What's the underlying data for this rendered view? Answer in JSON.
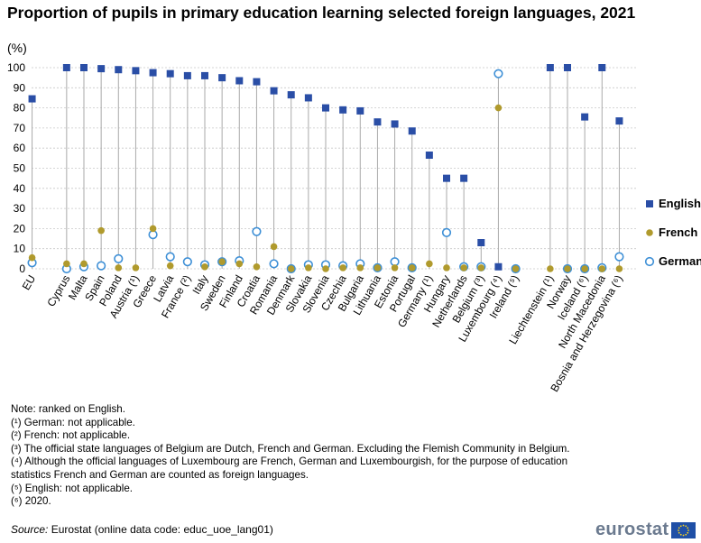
{
  "chart_data": {
    "type": "scatter",
    "title": "Proportion of pupils in primary education learning selected foreign languages, 2021",
    "unit": "(%)",
    "ylim": [
      0,
      100
    ],
    "yticks": [
      0,
      10,
      20,
      30,
      40,
      50,
      60,
      70,
      80,
      90,
      100
    ],
    "grid": true,
    "legend_position": "right",
    "categories": [
      "EU",
      "Cyprus",
      "Malta",
      "Spain",
      "Poland",
      "Austria (¹)",
      "Greece",
      "Latvia",
      "France (²)",
      "Italy",
      "Sweden",
      "Finland",
      "Croatia",
      "Romania",
      "Denmark",
      "Slovakia",
      "Slovenia",
      "Czechia",
      "Bulgaria",
      "Lithuania",
      "Estonia",
      "Portugal",
      "Germany (¹)",
      "Hungary",
      "Netherlands",
      "Belgium (³)",
      "Luxembourg (⁴)",
      "Ireland (⁵)",
      "Liechtenstein (¹)",
      "Norway",
      "Iceland (⁶)",
      "North Macedonia",
      "Bosnia and Herzegovina (⁶)"
    ],
    "series": [
      {
        "name": "English",
        "marker": "square",
        "color": "#2a4ea6",
        "values": [
          84.5,
          100,
          100,
          99.5,
          99,
          98.5,
          97.5,
          97,
          96,
          96,
          95,
          93.5,
          93,
          88.5,
          86.5,
          85,
          80,
          79,
          78.5,
          73,
          72,
          68.5,
          56.5,
          45,
          45,
          13,
          1,
          null,
          100,
          100,
          75.5,
          100,
          73.5
        ]
      },
      {
        "name": "French",
        "marker": "dot",
        "color": "#b09a2d",
        "values": [
          5.5,
          2.5,
          2.5,
          19,
          0.5,
          0.5,
          20,
          1.5,
          null,
          1,
          3.5,
          2.5,
          1,
          11,
          0,
          0.5,
          0,
          0.5,
          0.5,
          0.5,
          0.5,
          0.5,
          2.5,
          0.5,
          0.5,
          0.5,
          80,
          0,
          0,
          0,
          0,
          0,
          0
        ]
      },
      {
        "name": "German",
        "marker": "circle",
        "color": "#3d8fd6",
        "values": [
          3,
          0,
          1,
          1.5,
          5,
          null,
          17,
          6,
          3.5,
          2,
          3.5,
          4,
          18.5,
          2.5,
          0,
          2,
          2,
          1.5,
          2.5,
          0.5,
          3.5,
          0.5,
          null,
          18,
          1,
          1,
          97,
          0,
          null,
          0,
          0,
          0.5,
          6
        ]
      }
    ]
  },
  "notes": {
    "ranked": "Note: ranked on English.",
    "n1": "(¹) German: not applicable.",
    "n2": "(²) French: not applicable.",
    "n3": "(³) The official state languages of Belgium are Dutch, French and German. Excluding the Flemish Community in Belgium.",
    "n4": "(⁴) Although the official languages of Luxembourg are French, German and Luxembourgish, for the purpose of education statistics French and German are counted as foreign languages.",
    "n5": "(⁵) English: not applicable.",
    "n6": "(⁶) 2020."
  },
  "source": {
    "label": "Source:",
    "text": " Eurostat (online data code: educ_uoe_lang01)"
  },
  "logo": {
    "text": "eurostat",
    "icon": "eu-flag-icon"
  }
}
